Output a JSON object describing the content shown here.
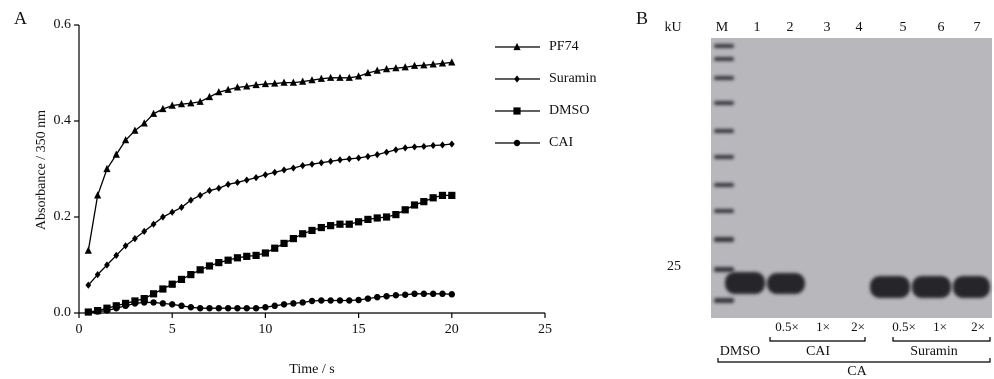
{
  "chart_data": {
    "type": "line",
    "panel_label": "A",
    "x_label": "Time / s",
    "y_label": "Absorbance / 350 nm",
    "x": [
      0.5,
      1,
      1.5,
      2,
      2.5,
      3,
      3.5,
      4,
      4.5,
      5,
      5.5,
      6,
      6.5,
      7,
      7.5,
      8,
      8.5,
      9,
      9.5,
      10,
      10.5,
      11,
      11.5,
      12,
      12.5,
      13,
      13.5,
      14,
      14.5,
      15,
      15.5,
      16,
      16.5,
      17,
      17.5,
      18,
      18.5,
      19,
      19.5,
      20
    ],
    "series": [
      {
        "name": "PF74",
        "color": "#000000",
        "marker": "triangle",
        "values": [
          0.13,
          0.245,
          0.3,
          0.33,
          0.36,
          0.38,
          0.395,
          0.415,
          0.425,
          0.432,
          0.435,
          0.437,
          0.44,
          0.45,
          0.46,
          0.465,
          0.47,
          0.472,
          0.475,
          0.477,
          0.478,
          0.48,
          0.48,
          0.482,
          0.485,
          0.488,
          0.49,
          0.49,
          0.49,
          0.493,
          0.5,
          0.505,
          0.508,
          0.51,
          0.512,
          0.515,
          0.516,
          0.518,
          0.52,
          0.522
        ]
      },
      {
        "name": "Suramin",
        "color": "#000000",
        "marker": "diamond",
        "values": [
          0.058,
          0.08,
          0.1,
          0.12,
          0.14,
          0.155,
          0.17,
          0.185,
          0.2,
          0.21,
          0.22,
          0.235,
          0.245,
          0.255,
          0.26,
          0.268,
          0.272,
          0.277,
          0.282,
          0.288,
          0.293,
          0.298,
          0.302,
          0.307,
          0.31,
          0.313,
          0.316,
          0.319,
          0.321,
          0.323,
          0.326,
          0.33,
          0.335,
          0.34,
          0.344,
          0.346,
          0.347,
          0.349,
          0.35,
          0.352
        ]
      },
      {
        "name": "DMSO",
        "color": "#000000",
        "marker": "square",
        "values": [
          0.002,
          0.005,
          0.01,
          0.015,
          0.02,
          0.025,
          0.03,
          0.04,
          0.05,
          0.06,
          0.07,
          0.08,
          0.09,
          0.098,
          0.105,
          0.11,
          0.115,
          0.118,
          0.12,
          0.125,
          0.135,
          0.145,
          0.155,
          0.165,
          0.172,
          0.178,
          0.182,
          0.185,
          0.185,
          0.19,
          0.195,
          0.198,
          0.2,
          0.205,
          0.215,
          0.225,
          0.232,
          0.24,
          0.245,
          0.245
        ]
      },
      {
        "name": "CAI",
        "color": "#000000",
        "marker": "circle",
        "values": [
          0.002,
          0.003,
          0.005,
          0.01,
          0.015,
          0.02,
          0.022,
          0.022,
          0.02,
          0.018,
          0.015,
          0.012,
          0.01,
          0.01,
          0.01,
          0.01,
          0.01,
          0.01,
          0.01,
          0.012,
          0.015,
          0.018,
          0.02,
          0.022,
          0.025,
          0.026,
          0.026,
          0.026,
          0.026,
          0.027,
          0.03,
          0.033,
          0.035,
          0.037,
          0.038,
          0.04,
          0.04,
          0.04,
          0.04,
          0.039
        ]
      }
    ],
    "xlim": [
      0,
      25
    ],
    "xticks": [
      0,
      5,
      10,
      15,
      20,
      25
    ],
    "ylim": [
      0,
      0.6
    ],
    "yticks": [
      {
        "value": 0,
        "label": "0.0"
      },
      0.2,
      0.4,
      0.6
    ],
    "grid": false,
    "legend": "upper right"
  },
  "gel": {
    "panel_label": "B",
    "unit_label": "kU",
    "lane_labels": [
      "M",
      "1",
      "2",
      "3",
      "4",
      "5",
      "6",
      "7"
    ],
    "marker_label": "25",
    "concentrations": [
      "0.5×",
      "1×",
      "2×",
      "0.5×",
      "1×",
      "2×"
    ],
    "groups": [
      "DMSO",
      "CAI",
      "Suramin"
    ],
    "protein": "CA"
  }
}
